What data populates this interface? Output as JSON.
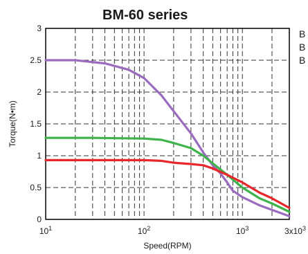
{
  "chart_data": {
    "type": "line",
    "title": "BM-60 series",
    "xlabel": "Speed(RPM)",
    "ylabel": "Torque(N•m)",
    "x_scale": "log",
    "xlim": [
      10,
      3000
    ],
    "ylim": [
      0,
      3
    ],
    "grid": true,
    "x_ticks": [
      {
        "value": 10,
        "label": "10",
        "exp": "1"
      },
      {
        "value": 100,
        "label": "10",
        "exp": "2"
      },
      {
        "value": 1000,
        "label": "10",
        "exp": "3"
      },
      {
        "value": 3000,
        "label": "3x10",
        "exp": "3"
      }
    ],
    "y_ticks": [
      {
        "value": 0,
        "label": "0"
      },
      {
        "value": 0.5,
        "label": "0.5"
      },
      {
        "value": 1,
        "label": "1"
      },
      {
        "value": 1.5,
        "label": "1.5"
      },
      {
        "value": 2,
        "label": "2"
      },
      {
        "value": 2.5,
        "label": "2.5"
      },
      {
        "value": 3,
        "label": "3"
      }
    ],
    "legend_labels": [
      "B",
      "B",
      "B"
    ],
    "series": [
      {
        "color": "#9b6bbf",
        "x": [
          10,
          20,
          40,
          70,
          100,
          150,
          200,
          300,
          400,
          500,
          600,
          700,
          800,
          1000,
          1500,
          2000,
          3000
        ],
        "y": [
          2.5,
          2.5,
          2.45,
          2.35,
          2.22,
          1.95,
          1.7,
          1.35,
          1.05,
          0.85,
          0.72,
          0.58,
          0.45,
          0.35,
          0.22,
          0.15,
          0.05
        ]
      },
      {
        "color": "#3db34a",
        "x": [
          10,
          30,
          100,
          150,
          200,
          300,
          400,
          500,
          700,
          1000,
          1500,
          2000,
          3000
        ],
        "y": [
          1.28,
          1.28,
          1.27,
          1.25,
          1.2,
          1.12,
          1.0,
          0.88,
          0.7,
          0.5,
          0.33,
          0.25,
          0.12
        ]
      },
      {
        "color": "#e8262b",
        "x": [
          10,
          30,
          100,
          150,
          200,
          300,
          400,
          500,
          700,
          1000,
          1500,
          2000,
          3000
        ],
        "y": [
          0.93,
          0.93,
          0.93,
          0.92,
          0.89,
          0.87,
          0.85,
          0.8,
          0.7,
          0.58,
          0.42,
          0.33,
          0.18
        ]
      }
    ]
  }
}
